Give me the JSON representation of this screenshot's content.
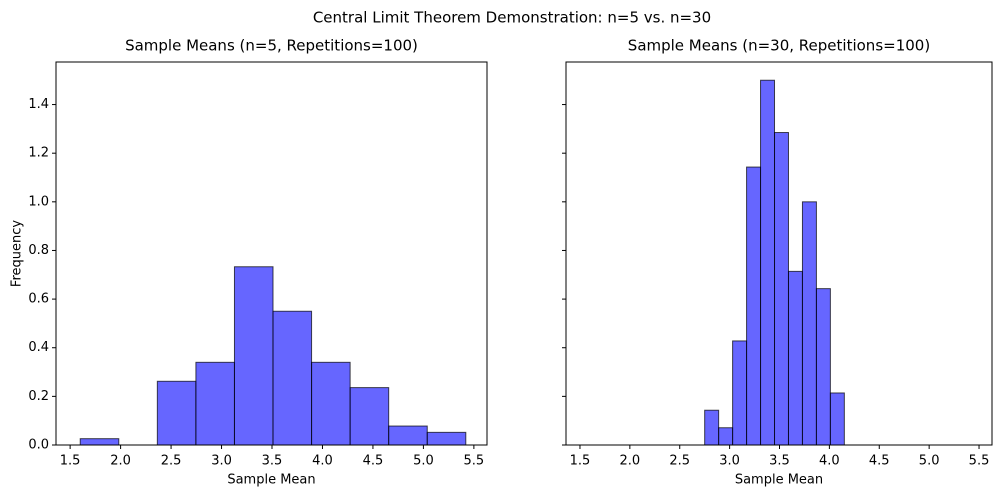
{
  "title": "Central Limit Theorem Demonstration: n=5 vs. n=30",
  "chart_data": [
    {
      "type": "histogram",
      "title": "Sample Means (n=5, Repetitions=100)",
      "xlabel": "Sample Mean",
      "ylabel": "Frequency",
      "color": "#0000ff",
      "alpha": 0.6,
      "edgecolor": "#000000",
      "bins": [
        1.6,
        1.982,
        2.364,
        2.746,
        3.128,
        3.51,
        3.892,
        4.274,
        4.656,
        5.038,
        5.42
      ],
      "values": [
        0.026,
        0,
        0.262,
        0.34,
        0.733,
        0.55,
        0.34,
        0.236,
        0.078,
        0.052
      ],
      "xlim": [
        1.36,
        5.63
      ],
      "ylim": [
        0,
        1.575
      ],
      "xticks": [
        1.5,
        {
          "value": 2,
          "label": "2.0"
        },
        2.5,
        {
          "value": 3,
          "label": "3.0"
        },
        3.5,
        {
          "value": 4,
          "label": "4.0"
        },
        4.5,
        {
          "value": 5,
          "label": "5.0"
        },
        5.5
      ],
      "yticks": [
        {
          "value": 0,
          "label": "0.0"
        },
        0.2,
        0.4,
        0.6,
        0.8,
        {
          "value": 1,
          "label": "1.0"
        },
        1.2,
        1.4
      ]
    },
    {
      "type": "histogram",
      "title": "Sample Means (n=30, Repetitions=100)",
      "xlabel": "Sample Mean",
      "color": "#0000ff",
      "alpha": 0.6,
      "edgecolor": "#000000",
      "bins": [
        2.75,
        2.89,
        3.03,
        3.17,
        3.31,
        3.45,
        3.59,
        3.73,
        3.87,
        4.01,
        4.15
      ],
      "values": [
        0.143,
        0.071,
        0.428,
        1.143,
        1.5,
        1.285,
        0.714,
        1.0,
        0.643,
        0.214
      ],
      "xlim": [
        1.36,
        5.63
      ],
      "ylim": [
        0,
        1.575
      ],
      "xticks": [
        1.5,
        {
          "value": 2,
          "label": "2.0"
        },
        2.5,
        {
          "value": 3,
          "label": "3.0"
        },
        3.5,
        {
          "value": 4,
          "label": "4.0"
        },
        4.5,
        {
          "value": 5,
          "label": "5.0"
        },
        5.5
      ]
    }
  ]
}
